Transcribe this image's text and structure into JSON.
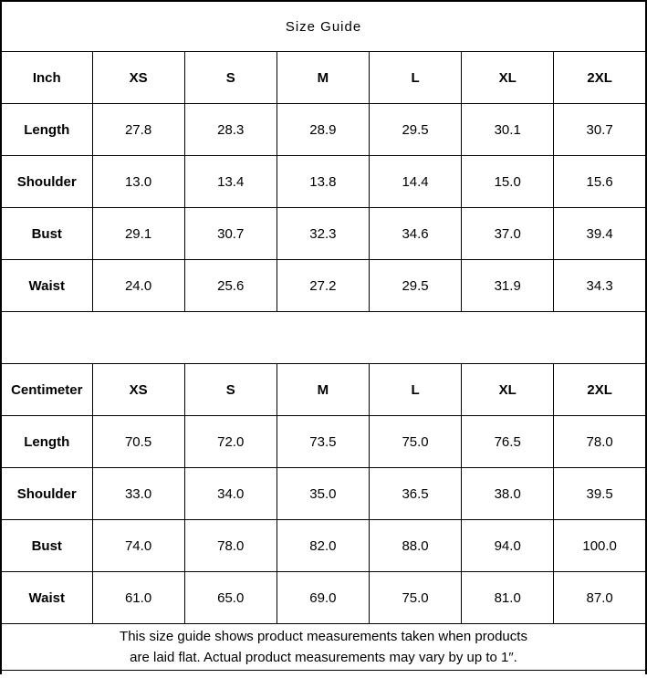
{
  "title": "Size Guide",
  "sizes": [
    "XS",
    "S",
    "M",
    "L",
    "XL",
    "2XL"
  ],
  "tables": [
    {
      "unit": "Inch",
      "rows": [
        {
          "label": "Length",
          "values": [
            "27.8",
            "28.3",
            "28.9",
            "29.5",
            "30.1",
            "30.7"
          ]
        },
        {
          "label": "Shoulder",
          "values": [
            "13.0",
            "13.4",
            "13.8",
            "14.4",
            "15.0",
            "15.6"
          ]
        },
        {
          "label": "Bust",
          "values": [
            "29.1",
            "30.7",
            "32.3",
            "34.6",
            "37.0",
            "39.4"
          ]
        },
        {
          "label": "Waist",
          "values": [
            "24.0",
            "25.6",
            "27.2",
            "29.5",
            "31.9",
            "34.3"
          ]
        }
      ]
    },
    {
      "unit": "Centimeter",
      "rows": [
        {
          "label": "Length",
          "values": [
            "70.5",
            "72.0",
            "73.5",
            "75.0",
            "76.5",
            "78.0"
          ]
        },
        {
          "label": "Shoulder",
          "values": [
            "33.0",
            "34.0",
            "35.0",
            "36.5",
            "38.0",
            "39.5"
          ]
        },
        {
          "label": "Bust",
          "values": [
            "74.0",
            "78.0",
            "82.0",
            "88.0",
            "94.0",
            "100.0"
          ]
        },
        {
          "label": "Waist",
          "values": [
            "61.0",
            "65.0",
            "69.0",
            "75.0",
            "81.0",
            "87.0"
          ]
        }
      ]
    }
  ],
  "footnote": {
    "line1": "This size guide shows product measurements taken when products",
    "line2": "are laid flat. Actual product measurements may vary by up to 1″."
  },
  "colors": {
    "border": "#000000",
    "background": "#ffffff",
    "text": "#000000"
  }
}
